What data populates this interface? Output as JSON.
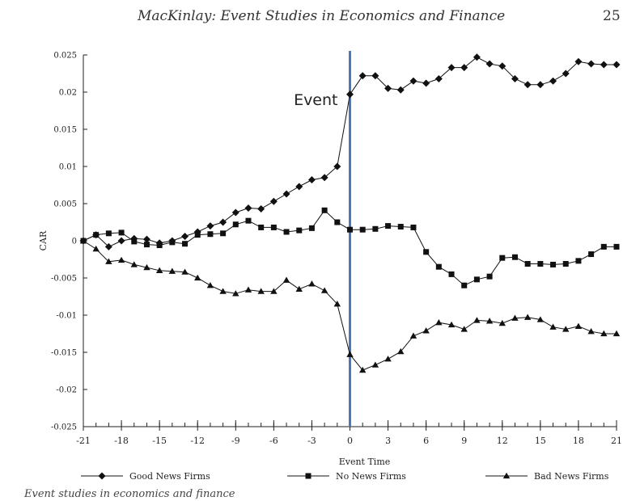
{
  "header": {
    "title": "MacKinlay: Event Studies in Economics and Finance",
    "page_number": "25"
  },
  "caption": "Event studies in economics and finance",
  "colors": {
    "event_line": "#4a78b8",
    "series": "#111111",
    "axis": "#222222"
  },
  "chart_data": {
    "type": "line",
    "xlabel": "Event Time",
    "ylabel": "CAR",
    "xlim": [
      -21,
      21
    ],
    "ylim": [
      -0.025,
      0.025
    ],
    "x_ticks": [
      -21,
      -18,
      -15,
      -12,
      -9,
      -6,
      -3,
      0,
      3,
      6,
      9,
      12,
      15,
      18,
      21
    ],
    "y_ticks": [
      0.025,
      0.02,
      0.015,
      0.01,
      0.005,
      0,
      -0.005,
      -0.01,
      -0.015,
      -0.02,
      -0.025
    ],
    "y_tick_labels": [
      "0.025",
      "0.02",
      "0.015",
      "0.01",
      "0.005",
      "0",
      "-0.005",
      "-0.01",
      "-0.015",
      "-0.02",
      "-0.025"
    ],
    "annotation": {
      "label": "Event",
      "x": 0
    },
    "legend_position": "bottom",
    "grid": false,
    "x": [
      -21,
      -20,
      -19,
      -18,
      -17,
      -16,
      -15,
      -14,
      -13,
      -12,
      -11,
      -10,
      -9,
      -8,
      -7,
      -6,
      -5,
      -4,
      -3,
      -2,
      -1,
      0,
      1,
      2,
      3,
      4,
      5,
      6,
      7,
      8,
      9,
      10,
      11,
      12,
      13,
      14,
      15,
      16,
      17,
      18,
      19,
      20,
      21
    ],
    "series": [
      {
        "name": "Good News Firms",
        "marker": "diamond",
        "values": [
          0.0,
          0.0008,
          -0.0008,
          0.0,
          0.0003,
          0.0002,
          -0.0003,
          0.0,
          0.0006,
          0.0012,
          0.002,
          0.0025,
          0.0038,
          0.0044,
          0.0043,
          0.0053,
          0.0063,
          0.0073,
          0.0082,
          0.0085,
          0.01,
          0.0197,
          0.0222,
          0.0222,
          0.0205,
          0.0203,
          0.0215,
          0.0212,
          0.0218,
          0.0233,
          0.0233,
          0.0247,
          0.0238,
          0.0235,
          0.0218,
          0.021,
          0.021,
          0.0215,
          0.0225,
          0.0241,
          0.0238,
          0.0237,
          0.0237
        ]
      },
      {
        "name": "No News Firms",
        "marker": "square",
        "values": [
          0.0,
          0.0008,
          0.001,
          0.0011,
          -0.0001,
          -0.0005,
          -0.0006,
          -0.0002,
          -0.0004,
          0.0008,
          0.0009,
          0.001,
          0.0022,
          0.0027,
          0.0018,
          0.0018,
          0.0012,
          0.0014,
          0.0017,
          0.0041,
          0.0025,
          0.0015,
          0.0015,
          0.0016,
          0.002,
          0.0019,
          0.0018,
          -0.0015,
          -0.0035,
          -0.0045,
          -0.006,
          -0.0052,
          -0.0048,
          -0.0023,
          -0.0022,
          -0.0031,
          -0.0031,
          -0.0032,
          -0.0031,
          -0.0027,
          -0.0018,
          -0.0008,
          -0.0008
        ]
      },
      {
        "name": "Bad News Firms",
        "marker": "triangle",
        "values": [
          0.0,
          -0.0011,
          -0.0028,
          -0.0026,
          -0.0032,
          -0.0036,
          -0.004,
          -0.0041,
          -0.0042,
          -0.005,
          -0.006,
          -0.0068,
          -0.0071,
          -0.0066,
          -0.0068,
          -0.0068,
          -0.0053,
          -0.0065,
          -0.0058,
          -0.0067,
          -0.0085,
          -0.0153,
          -0.0174,
          -0.0167,
          -0.0159,
          -0.0149,
          -0.0128,
          -0.0121,
          -0.011,
          -0.0113,
          -0.0119,
          -0.0107,
          -0.0108,
          -0.0111,
          -0.0104,
          -0.0103,
          -0.0106,
          -0.0116,
          -0.0119,
          -0.0115,
          -0.0122,
          -0.0125,
          -0.0125
        ]
      }
    ]
  }
}
